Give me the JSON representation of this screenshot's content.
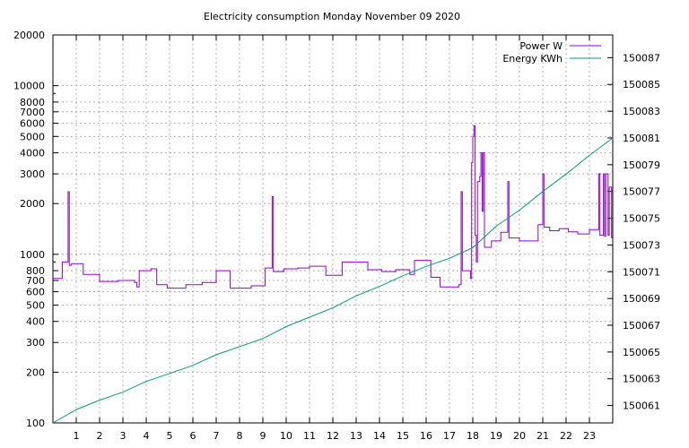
{
  "chart_data": {
    "type": "line",
    "title": "Electricity consumption Monday November 09 2020",
    "xlabel": "",
    "ylabel": "",
    "xlim": [
      0,
      24
    ],
    "ylim_left": [
      100,
      20000
    ],
    "y_scale_left": "log",
    "ylim_right": [
      150059.7,
      150088.7
    ],
    "x_ticks": [
      1,
      2,
      3,
      4,
      5,
      6,
      7,
      8,
      9,
      10,
      11,
      12,
      13,
      14,
      15,
      16,
      17,
      18,
      19,
      20,
      21,
      22,
      23
    ],
    "y_ticks_left": [
      100,
      200,
      300,
      400,
      500,
      600,
      700,
      800,
      1000,
      2000,
      3000,
      4000,
      5000,
      6000,
      7000,
      8000,
      10000,
      20000
    ],
    "y_tick_labels_left": [
      "100",
      "200",
      "300",
      "400",
      "500",
      "600",
      "700",
      "800",
      "1000",
      "2000",
      "3000",
      "4000",
      "5000",
      "6000",
      "7000",
      "8000",
      "10000",
      "20000"
    ],
    "y_ticks_right": [
      150061,
      150063,
      150065,
      150067,
      150069,
      150071,
      150073,
      150075,
      150077,
      150079,
      150081,
      150083,
      150085,
      150087
    ],
    "grid": true,
    "legend_position": "top-right",
    "series": [
      {
        "name": "Power W",
        "axis": "left",
        "color": "#9400d3",
        "step": true,
        "points": [
          [
            0,
            720
          ],
          [
            0.4,
            900
          ],
          [
            0.65,
            2350
          ],
          [
            0.7,
            860
          ],
          [
            0.8,
            880
          ],
          [
            1.3,
            760
          ],
          [
            2.0,
            690
          ],
          [
            2.8,
            700
          ],
          [
            3.5,
            680
          ],
          [
            3.6,
            640
          ],
          [
            3.7,
            800
          ],
          [
            4.2,
            820
          ],
          [
            4.45,
            660
          ],
          [
            4.9,
            630
          ],
          [
            5.7,
            660
          ],
          [
            6.4,
            680
          ],
          [
            7.0,
            800
          ],
          [
            7.6,
            630
          ],
          [
            8.5,
            650
          ],
          [
            9.1,
            830
          ],
          [
            9.4,
            2200
          ],
          [
            9.45,
            790
          ],
          [
            9.9,
            820
          ],
          [
            10.5,
            830
          ],
          [
            11.0,
            850
          ],
          [
            11.7,
            750
          ],
          [
            12.4,
            900
          ],
          [
            13.5,
            810
          ],
          [
            14.1,
            790
          ],
          [
            14.7,
            810
          ],
          [
            15.3,
            760
          ],
          [
            15.5,
            920
          ],
          [
            16.2,
            730
          ],
          [
            16.6,
            640
          ],
          [
            17.4,
            660
          ],
          [
            17.5,
            2350
          ],
          [
            17.55,
            800
          ],
          [
            17.9,
            720
          ],
          [
            17.95,
            3500
          ],
          [
            18.0,
            5000
          ],
          [
            18.05,
            5800
          ],
          [
            18.1,
            1300
          ],
          [
            18.15,
            900
          ],
          [
            18.2,
            2700
          ],
          [
            18.3,
            2900
          ],
          [
            18.35,
            4000
          ],
          [
            18.4,
            1800
          ],
          [
            18.45,
            4000
          ],
          [
            18.5,
            1100
          ],
          [
            18.8,
            1200
          ],
          [
            19.2,
            1350
          ],
          [
            19.5,
            2700
          ],
          [
            19.55,
            1250
          ],
          [
            20.0,
            1200
          ],
          [
            20.8,
            1500
          ],
          [
            21.0,
            3000
          ],
          [
            21.05,
            1450
          ],
          [
            21.3,
            1380
          ],
          [
            21.7,
            1420
          ],
          [
            22.1,
            1360
          ],
          [
            22.5,
            1320
          ],
          [
            23.0,
            1400
          ],
          [
            23.4,
            3000
          ],
          [
            23.45,
            1300
          ],
          [
            23.6,
            3000
          ],
          [
            23.65,
            1280
          ],
          [
            23.7,
            3000
          ],
          [
            23.8,
            1300
          ],
          [
            23.85,
            2500
          ],
          [
            23.95,
            1250
          ],
          [
            24,
            1250
          ]
        ]
      },
      {
        "name": "Energy KWh",
        "axis": "right",
        "color": "#009e73",
        "step": false,
        "points": [
          [
            0,
            150059.7
          ],
          [
            1,
            150060.7
          ],
          [
            2,
            150061.4
          ],
          [
            3,
            150062.0
          ],
          [
            4,
            150062.8
          ],
          [
            5,
            150063.4
          ],
          [
            6,
            150064.0
          ],
          [
            7,
            150064.8
          ],
          [
            8,
            150065.4
          ],
          [
            9,
            150066.0
          ],
          [
            10,
            150066.9
          ],
          [
            11,
            150067.6
          ],
          [
            12,
            150068.3
          ],
          [
            13,
            150069.2
          ],
          [
            14,
            150069.9
          ],
          [
            15,
            150070.7
          ],
          [
            16,
            150071.4
          ],
          [
            17,
            150072.0
          ],
          [
            18,
            150072.8
          ],
          [
            19,
            150074.4
          ],
          [
            20,
            150075.6
          ],
          [
            21,
            150077.0
          ],
          [
            22,
            150078.3
          ],
          [
            23,
            150079.7
          ],
          [
            24,
            150081.0
          ]
        ]
      }
    ]
  }
}
